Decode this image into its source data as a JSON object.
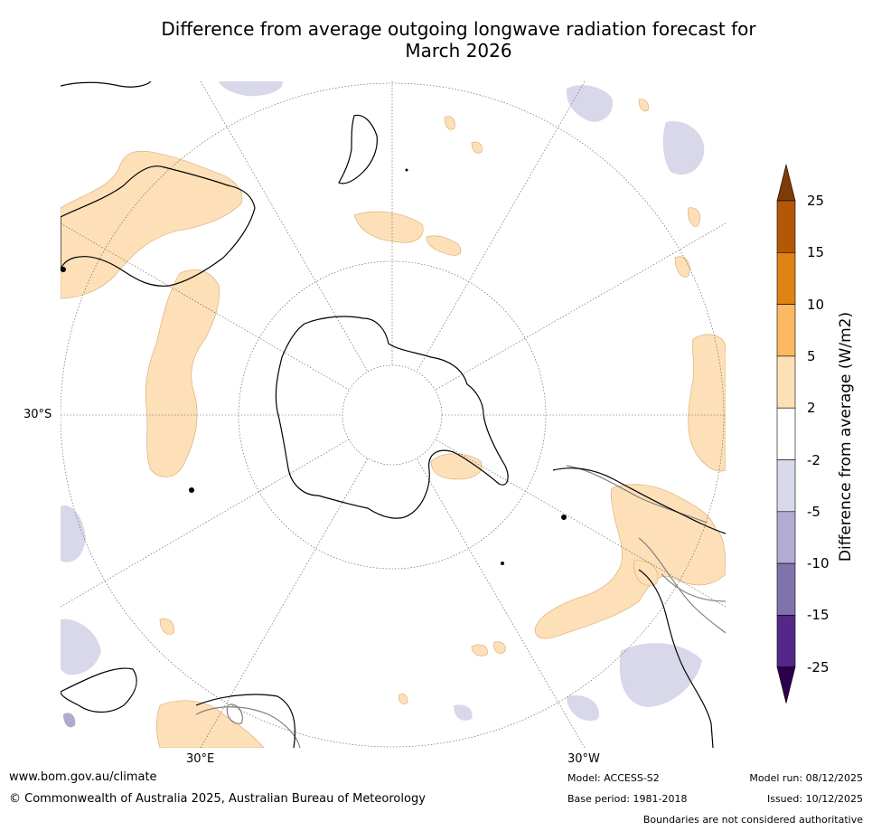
{
  "title_line1": "Difference from average outgoing longwave radiation forecast for",
  "title_line2": "March 2026",
  "map": {
    "lat_label": "30°S",
    "lon_label_east": "30°E",
    "lon_label_west": "30°W",
    "colors": {
      "positive_2_5": "#fde0b8",
      "negative_2_5": "#d8d8ea",
      "negative_5_10": "#b1aad0",
      "coast": "#000000",
      "border": "#808080",
      "grid": "#555555"
    }
  },
  "colorbar": {
    "title": "Difference from average (W/m2)",
    "ticks": [
      "25",
      "15",
      "10",
      "5",
      "2",
      "-2",
      "-5",
      "-10",
      "-15",
      "-25"
    ],
    "bins": [
      {
        "range": "above 25",
        "color": "#7f3b08"
      },
      {
        "range": "15 to 25",
        "color": "#b35806"
      },
      {
        "range": "10 to 15",
        "color": "#e08214"
      },
      {
        "range": "5 to 10",
        "color": "#fdb863"
      },
      {
        "range": "2 to 5",
        "color": "#fee0b6"
      },
      {
        "range": "-2 to 2",
        "color": "#ffffff"
      },
      {
        "range": "-5 to -2",
        "color": "#d8daeb"
      },
      {
        "range": "-10 to -5",
        "color": "#b2abd2"
      },
      {
        "range": "-15 to -10",
        "color": "#8073ac"
      },
      {
        "range": "-25 to -15",
        "color": "#542788"
      },
      {
        "range": "below -25",
        "color": "#2d004b"
      }
    ]
  },
  "footer": {
    "website": "www.bom.gov.au/climate",
    "copyright": "© Commonwealth of Australia 2025, Australian Bureau of Meteorology",
    "model": "Model: ACCESS-S2",
    "base_period": "Base period: 1981-2018",
    "model_run": "Model run: 08/12/2025",
    "issued": "Issued: 10/12/2025",
    "disclaimer": "Boundaries are not considered authoritative"
  }
}
